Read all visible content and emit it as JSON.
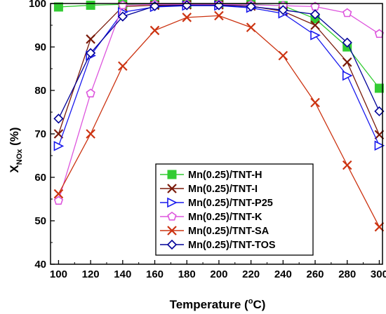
{
  "chart_data": {
    "type": "line",
    "xlabel_main": "Temperature (",
    "xlabel_sup": "o",
    "xlabel_tail": "C)",
    "ylabel_main": "X",
    "ylabel_sub": "NOx",
    "ylabel_tail": " (%)",
    "xlim": [
      95,
      302
    ],
    "ylim": [
      40,
      100
    ],
    "xticks": [
      100,
      120,
      140,
      160,
      180,
      200,
      220,
      240,
      260,
      280,
      300
    ],
    "yticks": [
      40,
      50,
      60,
      70,
      80,
      90,
      100
    ],
    "x": [
      100,
      120,
      140,
      160,
      180,
      200,
      220,
      240,
      260,
      280,
      300
    ],
    "legend_position": "lower-center",
    "series": [
      {
        "name": "Mn(0.25)/TNT-H",
        "color": "#33cc33",
        "marker": "square",
        "values": [
          99.2,
          99.6,
          99.8,
          99.9,
          99.9,
          99.9,
          99.8,
          99.5,
          96.5,
          90.0,
          80.5
        ]
      },
      {
        "name": "Mn(0.25)/TNT-I",
        "color": "#7a1a0a",
        "marker": "x",
        "values": [
          70.0,
          91.8,
          99.3,
          99.6,
          99.7,
          99.7,
          99.4,
          98.2,
          95.0,
          86.5,
          69.8
        ]
      },
      {
        "name": "Mn(0.25)/TNT-P25",
        "color": "#1a1aee",
        "marker": "triangle-right",
        "values": [
          67.2,
          88.0,
          98.0,
          99.2,
          99.5,
          99.5,
          99.0,
          97.7,
          92.7,
          83.4,
          67.3
        ]
      },
      {
        "name": "Mn(0.25)/TNT-K",
        "color": "#dd55dd",
        "marker": "pentagon",
        "values": [
          54.6,
          79.3,
          99.6,
          99.8,
          99.8,
          99.8,
          99.7,
          99.5,
          99.3,
          97.8,
          93.0
        ]
      },
      {
        "name": "Mn(0.25)/TNT-SA",
        "color": "#cc3311",
        "marker": "x",
        "values": [
          56.2,
          70.0,
          85.6,
          93.8,
          96.8,
          97.2,
          94.5,
          88.0,
          77.2,
          62.8,
          48.6
        ]
      },
      {
        "name": "Mn(0.25)/TNT-TOS",
        "color": "#000099",
        "marker": "diamond",
        "values": [
          73.5,
          88.6,
          97.0,
          99.4,
          99.6,
          99.6,
          99.3,
          98.5,
          97.5,
          91.0,
          75.2
        ]
      }
    ]
  }
}
